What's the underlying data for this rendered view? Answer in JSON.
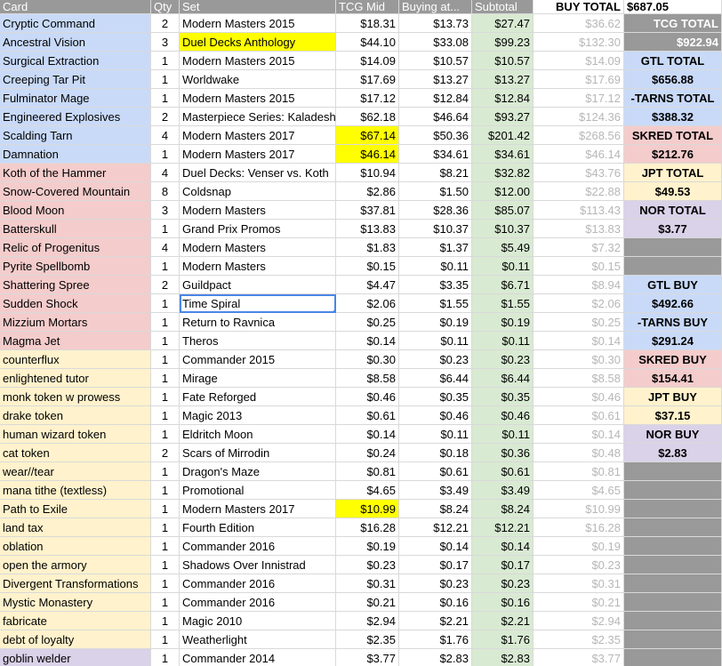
{
  "headers": {
    "card": "Card",
    "qty": "Qty",
    "set": "Set",
    "tcg_mid": "TCG Mid",
    "buying_at": "Buying at...",
    "subtotal": "Subtotal",
    "buy_total_label": "BUY TOTAL",
    "buy_total_value": "$687.05"
  },
  "owner_colors": {
    "blue": "#c9daf8",
    "red": "#f4cccc",
    "orange": "#fff2cc",
    "purple": "#d9d2e9",
    "yellow": "#ffff00",
    "green": "#d9ead3",
    "dark": "#999999"
  },
  "rows": [
    {
      "card": "Cryptic Command",
      "qty": "2",
      "set": "Modern Masters 2015",
      "mid": "$18.31",
      "buy": "$13.73",
      "sub": "$27.47",
      "tcg": "$36.62",
      "owner": "blue"
    },
    {
      "card": "Ancestral Vision",
      "qty": "3",
      "set": "Duel Decks Anthology",
      "mid": "$44.10",
      "buy": "$33.08",
      "sub": "$99.23",
      "tcg": "$132.30",
      "owner": "blue",
      "set_hl": true
    },
    {
      "card": "Surgical Extraction",
      "qty": "1",
      "set": "Modern Masters 2015",
      "mid": "$14.09",
      "buy": "$10.57",
      "sub": "$10.57",
      "tcg": "$14.09",
      "owner": "blue"
    },
    {
      "card": "Creeping Tar Pit",
      "qty": "1",
      "set": "Worldwake",
      "mid": "$17.69",
      "buy": "$13.27",
      "sub": "$13.27",
      "tcg": "$17.69",
      "owner": "blue"
    },
    {
      "card": "Fulminator Mage",
      "qty": "1",
      "set": "Modern Masters 2015",
      "mid": "$17.12",
      "buy": "$12.84",
      "sub": "$12.84",
      "tcg": "$17.12",
      "owner": "blue"
    },
    {
      "card": "Engineered Explosives",
      "qty": "2",
      "set": "Masterpiece Series: Kaladesh",
      "mid": "$62.18",
      "buy": "$46.64",
      "sub": "$93.27",
      "tcg": "$124.36",
      "owner": "blue"
    },
    {
      "card": "Scalding Tarn",
      "qty": "4",
      "set": "Modern Masters 2017",
      "mid": "$67.14",
      "buy": "$50.36",
      "sub": "$201.42",
      "tcg": "$268.56",
      "owner": "blue",
      "mid_hl": true
    },
    {
      "card": "Damnation",
      "qty": "1",
      "set": "Modern Masters 2017",
      "mid": "$46.14",
      "buy": "$34.61",
      "sub": "$34.61",
      "tcg": "$46.14",
      "owner": "blue",
      "mid_hl": true
    },
    {
      "card": "Koth of the Hammer",
      "qty": "4",
      "set": "Duel Decks: Venser vs. Koth",
      "mid": "$10.94",
      "buy": "$8.21",
      "sub": "$32.82",
      "tcg": "$43.76",
      "owner": "red"
    },
    {
      "card": "Snow-Covered Mountain",
      "qty": "8",
      "set": "Coldsnap",
      "mid": "$2.86",
      "buy": "$1.50",
      "sub": "$12.00",
      "tcg": "$22.88",
      "owner": "red"
    },
    {
      "card": "Blood Moon",
      "qty": "3",
      "set": "Modern Masters",
      "mid": "$37.81",
      "buy": "$28.36",
      "sub": "$85.07",
      "tcg": "$113.43",
      "owner": "red"
    },
    {
      "card": "Batterskull",
      "qty": "1",
      "set": "Grand Prix Promos",
      "mid": "$13.83",
      "buy": "$10.37",
      "sub": "$10.37",
      "tcg": "$13.83",
      "owner": "red"
    },
    {
      "card": "Relic of Progenitus",
      "qty": "4",
      "set": "Modern Masters",
      "mid": "$1.83",
      "buy": "$1.37",
      "sub": "$5.49",
      "tcg": "$7.32",
      "owner": "red"
    },
    {
      "card": "Pyrite Spellbomb",
      "qty": "1",
      "set": "Modern Masters",
      "mid": "$0.15",
      "buy": "$0.11",
      "sub": "$0.11",
      "tcg": "$0.15",
      "owner": "red"
    },
    {
      "card": "Shattering Spree",
      "qty": "2",
      "set": "Guildpact",
      "mid": "$4.47",
      "buy": "$3.35",
      "sub": "$6.71",
      "tcg": "$8.94",
      "owner": "red"
    },
    {
      "card": "Sudden Shock",
      "qty": "1",
      "set": "Time Spiral",
      "mid": "$2.06",
      "buy": "$1.55",
      "sub": "$1.55",
      "tcg": "$2.06",
      "owner": "red",
      "selected": true
    },
    {
      "card": "Mizzium Mortars",
      "qty": "1",
      "set": "Return to Ravnica",
      "mid": "$0.25",
      "buy": "$0.19",
      "sub": "$0.19",
      "tcg": "$0.25",
      "owner": "red"
    },
    {
      "card": "Magma Jet",
      "qty": "1",
      "set": "Theros",
      "mid": "$0.14",
      "buy": "$0.11",
      "sub": "$0.11",
      "tcg": "$0.14",
      "owner": "red"
    },
    {
      "card": "counterflux",
      "qty": "1",
      "set": "Commander 2015",
      "mid": "$0.30",
      "buy": "$0.23",
      "sub": "$0.23",
      "tcg": "$0.30",
      "owner": "orange"
    },
    {
      "card": "enlightened tutor",
      "qty": "1",
      "set": "Mirage",
      "mid": "$8.58",
      "buy": "$6.44",
      "sub": "$6.44",
      "tcg": "$8.58",
      "owner": "orange"
    },
    {
      "card": "monk token w prowess",
      "qty": "1",
      "set": "Fate Reforged",
      "mid": "$0.46",
      "buy": "$0.35",
      "sub": "$0.35",
      "tcg": "$0.46",
      "owner": "orange"
    },
    {
      "card": "drake token",
      "qty": "1",
      "set": "Magic 2013",
      "mid": "$0.61",
      "buy": "$0.46",
      "sub": "$0.46",
      "tcg": "$0.61",
      "owner": "orange"
    },
    {
      "card": "human wizard token",
      "qty": "1",
      "set": "Eldritch Moon",
      "mid": "$0.14",
      "buy": "$0.11",
      "sub": "$0.11",
      "tcg": "$0.14",
      "owner": "orange"
    },
    {
      "card": "cat token",
      "qty": "2",
      "set": "Scars of Mirrodin",
      "mid": "$0.24",
      "buy": "$0.18",
      "sub": "$0.36",
      "tcg": "$0.48",
      "owner": "orange"
    },
    {
      "card": "wear//tear",
      "qty": "1",
      "set": "Dragon's Maze",
      "mid": "$0.81",
      "buy": "$0.61",
      "sub": "$0.61",
      "tcg": "$0.81",
      "owner": "orange"
    },
    {
      "card": "mana tithe (textless)",
      "qty": "1",
      "set": "Promotional",
      "mid": "$4.65",
      "buy": "$3.49",
      "sub": "$3.49",
      "tcg": "$4.65",
      "owner": "orange"
    },
    {
      "card": "Path to Exile",
      "qty": "1",
      "set": "Modern Masters 2017",
      "mid": "$10.99",
      "buy": "$8.24",
      "sub": "$8.24",
      "tcg": "$10.99",
      "owner": "orange",
      "mid_hl": true
    },
    {
      "card": "land tax",
      "qty": "1",
      "set": "Fourth Edition",
      "mid": "$16.28",
      "buy": "$12.21",
      "sub": "$12.21",
      "tcg": "$16.28",
      "owner": "orange"
    },
    {
      "card": "oblation",
      "qty": "1",
      "set": "Commander 2016",
      "mid": "$0.19",
      "buy": "$0.14",
      "sub": "$0.14",
      "tcg": "$0.19",
      "owner": "orange"
    },
    {
      "card": "open the armory",
      "qty": "1",
      "set": "Shadows Over Innistrad",
      "mid": "$0.23",
      "buy": "$0.17",
      "sub": "$0.17",
      "tcg": "$0.23",
      "owner": "orange"
    },
    {
      "card": "Divergent Transformations",
      "qty": "1",
      "set": "Commander 2016",
      "mid": "$0.31",
      "buy": "$0.23",
      "sub": "$0.23",
      "tcg": "$0.31",
      "owner": "orange"
    },
    {
      "card": "Mystic Monastery",
      "qty": "1",
      "set": "Commander 2016",
      "mid": "$0.21",
      "buy": "$0.16",
      "sub": "$0.16",
      "tcg": "$0.21",
      "owner": "orange"
    },
    {
      "card": "fabricate",
      "qty": "1",
      "set": "Magic 2010",
      "mid": "$2.94",
      "buy": "$2.21",
      "sub": "$2.21",
      "tcg": "$2.94",
      "owner": "orange"
    },
    {
      "card": "debt of loyalty",
      "qty": "1",
      "set": "Weatherlight",
      "mid": "$2.35",
      "buy": "$1.76",
      "sub": "$1.76",
      "tcg": "$2.35",
      "owner": "orange"
    },
    {
      "card": "goblin welder",
      "qty": "1",
      "set": "Commander 2014",
      "mid": "$3.77",
      "buy": "$2.83",
      "sub": "$2.83",
      "tcg": "$3.77",
      "owner": "purple"
    }
  ],
  "summary": [
    {
      "text": "TCG TOTAL",
      "color": "dark",
      "align": "right",
      "font_color": "#ffffff"
    },
    {
      "text": "$922.94",
      "color": "dark",
      "align": "right",
      "font_color": "#ffffff"
    },
    {
      "text": "GTL TOTAL",
      "color": "blue"
    },
    {
      "text": "$656.88",
      "color": "blue"
    },
    {
      "text": "-TARNS TOTAL",
      "color": "blue"
    },
    {
      "text": "$388.32",
      "color": "blue"
    },
    {
      "text": "SKRED TOTAL",
      "color": "red"
    },
    {
      "text": "$212.76",
      "color": "red"
    },
    {
      "text": "JPT TOTAL",
      "color": "orange"
    },
    {
      "text": "$49.53",
      "color": "orange"
    },
    {
      "text": "NOR TOTAL",
      "color": "purple"
    },
    {
      "text": "$3.77",
      "color": "purple"
    },
    {
      "text": "",
      "color": "dark"
    },
    {
      "text": "",
      "color": "white"
    },
    {
      "text": "GTL BUY",
      "color": "blue"
    },
    {
      "text": "$492.66",
      "color": "blue"
    },
    {
      "text": "-TARNS BUY",
      "color": "blue"
    },
    {
      "text": "$291.24",
      "color": "blue"
    },
    {
      "text": "SKRED BUY",
      "color": "red"
    },
    {
      "text": "$154.41",
      "color": "red"
    },
    {
      "text": "JPT BUY",
      "color": "orange"
    },
    {
      "text": "$37.15",
      "color": "orange"
    },
    {
      "text": "NOR BUY",
      "color": "purple"
    },
    {
      "text": "$2.83",
      "color": "purple"
    }
  ]
}
